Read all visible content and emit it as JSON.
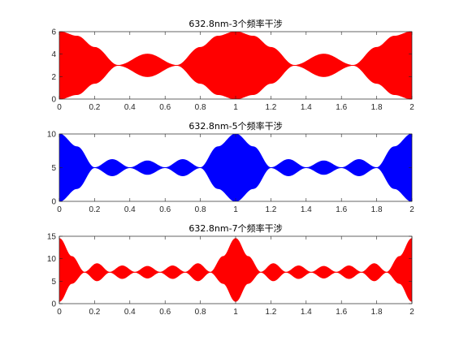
{
  "chart_data": [
    {
      "type": "area",
      "title": "632.8nm-3个频率干涉",
      "xlabel": "",
      "ylabel": "",
      "xlim": [
        0,
        2
      ],
      "ylim": [
        0,
        6
      ],
      "xticks": [
        "0",
        "0.2",
        "0.4",
        "0.6",
        "0.8",
        "1",
        "1.2",
        "1.4",
        "1.6",
        "1.8",
        "2"
      ],
      "yticks": [
        "0",
        "2",
        "4",
        "6"
      ],
      "components": 3,
      "color": "#ff0000",
      "grid": false,
      "envelope": {
        "x": [
          0,
          0.1,
          0.2,
          0.333,
          0.5,
          0.667,
          0.8,
          0.9,
          1,
          1.1,
          1.2,
          1.333,
          1.5,
          1.667,
          1.8,
          1.9,
          2
        ],
        "upper": [
          6,
          5.6,
          4.6,
          3.0,
          4.0,
          3.0,
          4.6,
          5.6,
          6,
          5.6,
          4.6,
          3.0,
          4.0,
          3.0,
          4.6,
          5.6,
          6
        ],
        "lower": [
          0,
          0.4,
          1.4,
          3.0,
          2.0,
          3.0,
          1.4,
          0.4,
          0,
          0.4,
          1.4,
          3.0,
          2.0,
          3.0,
          1.4,
          0.4,
          0
        ]
      }
    },
    {
      "type": "area",
      "title": "632.8nm-5个频率干涉",
      "xlabel": "",
      "ylabel": "",
      "xlim": [
        0,
        2
      ],
      "ylim": [
        0,
        10
      ],
      "xticks": [
        "0",
        "0.2",
        "0.4",
        "0.6",
        "0.8",
        "1",
        "1.2",
        "1.4",
        "1.6",
        "1.8",
        "2"
      ],
      "yticks": [
        "0",
        "5",
        "10"
      ],
      "components": 5,
      "color": "#0000ff",
      "grid": false,
      "envelope": {
        "x": [
          0,
          0.1,
          0.2,
          0.3,
          0.4,
          0.5,
          0.6,
          0.7,
          0.8,
          0.9,
          1,
          1.1,
          1.2,
          1.3,
          1.4,
          1.5,
          1.6,
          1.7,
          1.8,
          1.9,
          2
        ],
        "upper": [
          10,
          8.1,
          5.0,
          6.2,
          5.0,
          6.0,
          5.0,
          6.2,
          5.0,
          8.1,
          10,
          8.1,
          5.0,
          6.2,
          5.0,
          6.0,
          5.0,
          6.2,
          5.0,
          8.1,
          10
        ],
        "lower": [
          0,
          1.9,
          5.0,
          3.8,
          5.0,
          4.0,
          5.0,
          3.8,
          5.0,
          1.9,
          0,
          1.9,
          5.0,
          3.8,
          5.0,
          4.0,
          5.0,
          3.8,
          5.0,
          1.9,
          0
        ]
      }
    },
    {
      "type": "area",
      "title": "632.8nm-7个频率干涉",
      "xlabel": "",
      "ylabel": "",
      "xlim": [
        0,
        2
      ],
      "ylim": [
        0,
        15
      ],
      "xticks": [
        "0",
        "0.2",
        "0.4",
        "0.6",
        "0.8",
        "1",
        "1.2",
        "1.4",
        "1.6",
        "1.8",
        "2"
      ],
      "yticks": [
        "0",
        "5",
        "10",
        "15"
      ],
      "components": 7,
      "color": "#ff0000",
      "grid": false,
      "envelope": {
        "x": [
          0,
          0.07,
          0.143,
          0.214,
          0.286,
          0.357,
          0.429,
          0.5,
          0.571,
          0.643,
          0.714,
          0.786,
          0.857,
          0.93,
          1,
          1.07,
          1.143,
          1.214,
          1.286,
          1.357,
          1.429,
          1.5,
          1.571,
          1.643,
          1.714,
          1.786,
          1.857,
          1.93,
          2
        ],
        "upper": [
          14.5,
          10.5,
          7.0,
          8.9,
          7.0,
          8.4,
          7.0,
          8.3,
          7.0,
          8.4,
          7.0,
          8.9,
          7.0,
          10.5,
          14.5,
          10.5,
          7.0,
          8.9,
          7.0,
          8.4,
          7.0,
          8.3,
          7.0,
          8.4,
          7.0,
          8.9,
          7.0,
          10.5,
          14.5
        ],
        "lower": [
          0.5,
          4.5,
          7.0,
          5.1,
          7.0,
          5.6,
          7.0,
          5.7,
          7.0,
          5.6,
          7.0,
          5.1,
          7.0,
          4.5,
          0.5,
          4.5,
          7.0,
          5.1,
          7.0,
          5.6,
          7.0,
          5.7,
          7.0,
          5.6,
          7.0,
          5.1,
          7.0,
          4.5,
          0.5
        ]
      }
    }
  ]
}
